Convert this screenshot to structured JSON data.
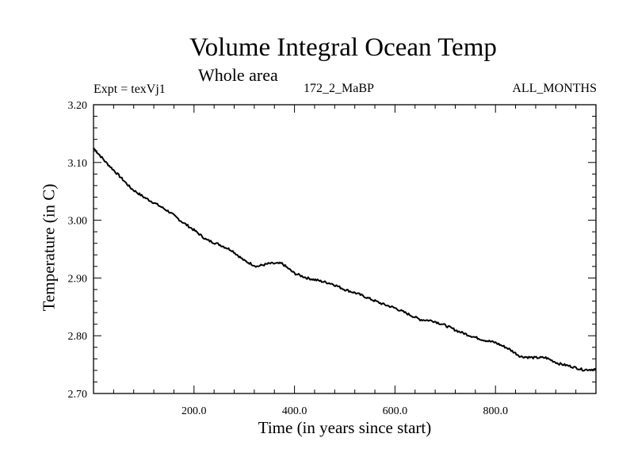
{
  "chart_data": {
    "type": "line",
    "title": "Volume Integral Ocean Temp",
    "subtitle": "Whole area",
    "expt_label": "Expt = texVj1",
    "center_label": "172_2_MaBP",
    "right_label": "ALL_MONTHS",
    "xlabel": "Time (in years since start)",
    "ylabel": "Temperature (in C)",
    "xlim": [
      0,
      1000
    ],
    "ylim": [
      2.7,
      3.2
    ],
    "x_ticks": [
      {
        "value": 200,
        "label": "200.0"
      },
      {
        "value": 400,
        "label": "400.0"
      },
      {
        "value": 600,
        "label": "600.0"
      },
      {
        "value": 800,
        "label": "800.0"
      }
    ],
    "y_ticks": [
      {
        "value": 2.7,
        "label": "2.70"
      },
      {
        "value": 2.8,
        "label": "2.80"
      },
      {
        "value": 2.9,
        "label": "2.90"
      },
      {
        "value": 3.0,
        "label": "3.00"
      },
      {
        "value": 3.1,
        "label": "3.10"
      },
      {
        "value": 3.2,
        "label": "3.20"
      }
    ],
    "series": [
      {
        "name": "Volume Integral Ocean Temp",
        "color": "#000000",
        "x": [
          0,
          25,
          50,
          75,
          100,
          125,
          150,
          175,
          200,
          225,
          250,
          275,
          300,
          325,
          350,
          375,
          400,
          425,
          450,
          475,
          500,
          525,
          550,
          575,
          600,
          625,
          650,
          675,
          700,
          725,
          750,
          775,
          800,
          825,
          850,
          875,
          900,
          925,
          950,
          975,
          1000
        ],
        "values": [
          3.125,
          3.1,
          3.078,
          3.055,
          3.04,
          3.028,
          3.015,
          2.998,
          2.983,
          2.966,
          2.958,
          2.948,
          2.93,
          2.92,
          2.925,
          2.925,
          2.908,
          2.9,
          2.895,
          2.89,
          2.88,
          2.873,
          2.864,
          2.855,
          2.848,
          2.838,
          2.828,
          2.826,
          2.818,
          2.808,
          2.8,
          2.793,
          2.788,
          2.778,
          2.764,
          2.762,
          2.762,
          2.752,
          2.747,
          2.741,
          2.742
        ]
      }
    ]
  }
}
